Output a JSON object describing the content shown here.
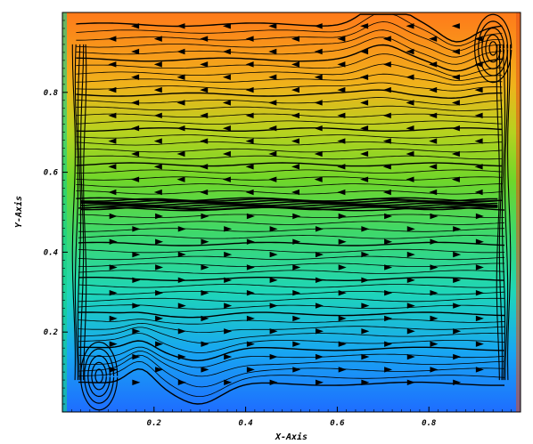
{
  "chart_data": {
    "type": "streamline-contour",
    "title": "",
    "xlabel": "X-Axis",
    "ylabel": "Y-Axis",
    "xlim": [
      0.0,
      1.0
    ],
    "ylim": [
      0.0,
      1.0
    ],
    "x_ticks": [
      0.2,
      0.4,
      0.6,
      0.8
    ],
    "y_ticks": [
      0.2,
      0.4,
      0.6,
      0.8
    ],
    "x_tick_labels": [
      "0.2",
      "0.4",
      "0.6",
      "0.8"
    ],
    "y_tick_labels": [
      "0.2",
      "0.4",
      "0.6",
      "0.8"
    ],
    "grid": false,
    "legend": "none",
    "colormap": {
      "stops": [
        {
          "value": 0.0,
          "color": "#1e6dff"
        },
        {
          "value": 0.15,
          "color": "#18a6f2"
        },
        {
          "value": 0.3,
          "color": "#1ed6b8"
        },
        {
          "value": 0.45,
          "color": "#3fd86a"
        },
        {
          "value": 0.58,
          "color": "#6fd62a"
        },
        {
          "value": 0.7,
          "color": "#b6d21f"
        },
        {
          "value": 0.82,
          "color": "#f0b21b"
        },
        {
          "value": 1.0,
          "color": "#ff7a1a"
        }
      ]
    },
    "streamline_color": "#000000",
    "flow": {
      "upper_direction": "left",
      "lower_direction": "right",
      "shear_layer_y": 0.52,
      "vortices": [
        {
          "x": 0.94,
          "y": 0.91
        },
        {
          "x": 0.08,
          "y": 0.09
        }
      ]
    }
  }
}
